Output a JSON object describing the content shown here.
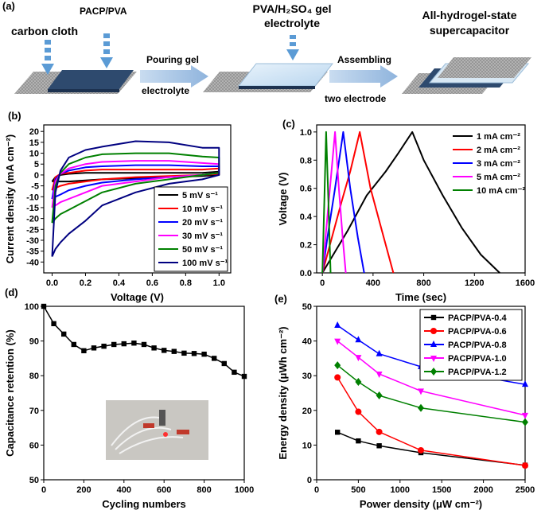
{
  "panel_a": {
    "label": "(a)",
    "carbon_cloth": "carbon cloth",
    "pacp_pva": "PACP/PVA",
    "pouring_gel": "Pouring gel",
    "electrolyte": "electrolyte",
    "gel_electrolyte_1": "PVA/H₂SO₄ gel",
    "gel_electrolyte_2": "electrolyte",
    "assembling": "Assembling",
    "two_electrode": "two electrode",
    "result_1": "All-hydrogel-state",
    "result_2": "supercapacitor"
  },
  "chart_data": [
    {
      "type": "line",
      "panel_label": "(b)",
      "xlabel": "Voltage (V)",
      "ylabel": "Current density (mA cm⁻²)",
      "xlim": [
        -0.05,
        1.07
      ],
      "ylim": [
        -45,
        23
      ],
      "xticks": [
        {
          "value": 0,
          "label": "0.0"
        },
        0.2,
        0.4,
        0.6,
        0.8,
        {
          "value": 1,
          "label": "1.0"
        }
      ],
      "yticks": [
        -40,
        -35,
        -30,
        -25,
        -20,
        -15,
        -10,
        -5,
        0,
        5,
        10,
        15,
        20
      ],
      "legend": "lower right",
      "legend_frame": true,
      "series": [
        {
          "name": "5 mV s⁻¹",
          "color": "#000000",
          "x": [
            0,
            0.02,
            0.05,
            0.1,
            0.2,
            0.3,
            0.5,
            0.7,
            0.9,
            1.0,
            1.0,
            0.9,
            0.7,
            0.5,
            0.3,
            0.2,
            0.1,
            0.05,
            0.02,
            0
          ],
          "values": [
            -3,
            -1,
            0,
            0.5,
            1,
            1,
            1,
            1,
            1,
            1.5,
            0,
            -0.5,
            -1,
            -1.5,
            -2,
            -2.5,
            -3,
            -3,
            -3,
            -3
          ]
        },
        {
          "name": "10 mV s⁻¹",
          "color": "#ff0000",
          "x": [
            0,
            0.02,
            0.05,
            0.1,
            0.2,
            0.3,
            0.5,
            0.7,
            0.9,
            1.0,
            1.0,
            0.9,
            0.7,
            0.5,
            0.3,
            0.2,
            0.1,
            0.05,
            0.02,
            0
          ],
          "values": [
            -7,
            -1,
            0.5,
            1,
            2,
            2.5,
            2.5,
            2.5,
            2.5,
            3,
            0.5,
            0,
            -0.5,
            -1,
            -2,
            -3,
            -4,
            -5,
            -6,
            -7
          ]
        },
        {
          "name": "20 mV s⁻¹",
          "color": "#0000ff",
          "x": [
            0,
            0.02,
            0.05,
            0.1,
            0.2,
            0.3,
            0.5,
            0.7,
            0.9,
            1.0,
            1.0,
            0.9,
            0.7,
            0.5,
            0.3,
            0.2,
            0.1,
            0.05,
            0.02,
            0
          ],
          "values": [
            -11,
            -2,
            0.5,
            2,
            3.5,
            4,
            4.5,
            4.5,
            4,
            4,
            1,
            0,
            -1,
            -2,
            -3.5,
            -5,
            -7,
            -9,
            -10,
            -11
          ]
        },
        {
          "name": "30 mV s⁻¹",
          "color": "#ff00ff",
          "x": [
            0,
            0.02,
            0.05,
            0.1,
            0.2,
            0.3,
            0.5,
            0.7,
            0.9,
            1.0,
            1.0,
            0.9,
            0.7,
            0.5,
            0.3,
            0.2,
            0.1,
            0.05,
            0.02,
            0
          ],
          "values": [
            -15,
            -3,
            0.5,
            3,
            5,
            6,
            6.5,
            6.5,
            5.5,
            5,
            1,
            0,
            -1,
            -3,
            -5,
            -8,
            -11,
            -12.5,
            -14,
            -15
          ]
        },
        {
          "name": "50 mV s⁻¹",
          "color": "#008000",
          "x": [
            0,
            0.02,
            0.05,
            0.1,
            0.2,
            0.3,
            0.5,
            0.7,
            0.9,
            1.0,
            1.0,
            0.9,
            0.7,
            0.5,
            0.3,
            0.2,
            0.1,
            0.05,
            0.02,
            0
          ],
          "values": [
            -22,
            -5,
            1,
            5,
            8,
            9.5,
            10,
            10,
            8.5,
            8,
            1,
            0,
            -2,
            -4,
            -8,
            -12,
            -16,
            -18,
            -20,
            -22
          ]
        },
        {
          "name": "100 mV s⁻¹",
          "color": "#000080",
          "x": [
            0,
            0.02,
            0.05,
            0.1,
            0.2,
            0.3,
            0.5,
            0.7,
            0.9,
            1.0,
            1.0,
            0.9,
            0.7,
            0.5,
            0.3,
            0.2,
            0.1,
            0.05,
            0.02,
            0
          ],
          "values": [
            -37.5,
            -8,
            2,
            8,
            11.5,
            13,
            15.5,
            15,
            12.5,
            12.5,
            0,
            -2,
            -4,
            -8,
            -14,
            -21,
            -27,
            -31,
            -34,
            -37.5
          ]
        }
      ]
    },
    {
      "type": "line",
      "panel_label": "(c)",
      "xlabel": "Time (sec)",
      "ylabel": "Voltage (V)",
      "xlim": [
        -45,
        1600
      ],
      "ylim": [
        0,
        1.05
      ],
      "xticks": [
        0,
        400,
        800,
        1200,
        1600
      ],
      "yticks": [
        {
          "value": 0,
          "label": "0.0"
        },
        0.2,
        0.4,
        0.6,
        0.8,
        {
          "value": 1,
          "label": "1.0"
        }
      ],
      "legend": "upper right",
      "legend_frame": false,
      "series": [
        {
          "name": "1 mA cm⁻²",
          "color": "#000000",
          "x": [
            0,
            100,
            200,
            350,
            500,
            600,
            710,
            800,
            950,
            1100,
            1250,
            1400
          ],
          "values": [
            0,
            0.15,
            0.3,
            0.55,
            0.72,
            0.85,
            1.0,
            0.8,
            0.55,
            0.32,
            0.13,
            0
          ]
        },
        {
          "name": "2 mA cm⁻²",
          "color": "#ff0000",
          "x": [
            0,
            60,
            150,
            220,
            295,
            380,
            470,
            560
          ],
          "values": [
            0,
            0.2,
            0.5,
            0.72,
            1.0,
            0.6,
            0.3,
            0
          ]
        },
        {
          "name": "3 mA cm⁻²",
          "color": "#0000ff",
          "x": [
            0,
            40,
            100,
            165,
            220,
            280,
            330
          ],
          "values": [
            0,
            0.25,
            0.6,
            1.0,
            0.6,
            0.25,
            0
          ]
        },
        {
          "name": "5 mA cm⁻²",
          "color": "#ff00ff",
          "x": [
            0,
            30,
            60,
            100,
            130,
            160,
            185
          ],
          "values": [
            0,
            0.3,
            0.6,
            1.0,
            0.6,
            0.25,
            0
          ]
        },
        {
          "name": "10 mA cm⁻²",
          "color": "#008000",
          "x": [
            0,
            15,
            30,
            48,
            65
          ],
          "values": [
            0,
            0.5,
            1.0,
            0.5,
            0
          ]
        }
      ]
    },
    {
      "type": "line",
      "panel_label": "(d)",
      "xlabel": "Cycling numbers",
      "ylabel": "Capacitance retention (%)",
      "xlim": [
        0,
        1000
      ],
      "ylim": [
        50,
        100
      ],
      "xticks": [
        0,
        200,
        400,
        600,
        800,
        1000
      ],
      "yticks": [
        50,
        60,
        70,
        80,
        90,
        100
      ],
      "x": [
        0,
        50,
        100,
        150,
        200,
        250,
        300,
        350,
        400,
        450,
        500,
        550,
        600,
        650,
        700,
        750,
        800,
        850,
        900,
        950,
        1000
      ],
      "values": [
        100,
        95,
        92,
        89,
        87.2,
        88,
        88.5,
        89,
        89.2,
        89.4,
        89,
        88,
        87.3,
        87,
        86.5,
        86.4,
        86.2,
        85,
        83.5,
        81,
        79.8
      ],
      "color": "#000000",
      "marker": "square"
    },
    {
      "type": "line",
      "panel_label": "(e)",
      "xlabel": "Power density (μW cm⁻²)",
      "ylabel": "Energy density (μWh cm⁻²)",
      "xlim": [
        0,
        2500
      ],
      "ylim": [
        0,
        50
      ],
      "xticks": [
        0,
        500,
        1000,
        1500,
        2000,
        2500
      ],
      "yticks": [
        0,
        10,
        20,
        30,
        40,
        50
      ],
      "legend": "upper right",
      "legend_frame": true,
      "x": [
        250,
        500,
        750,
        1250,
        2500
      ],
      "series": [
        {
          "name": "PACP/PVA-0.4",
          "color": "#000000",
          "marker": "square",
          "values": [
            13.7,
            11.2,
            9.8,
            7.8,
            4.2
          ]
        },
        {
          "name": "PACP/PVA-0.6",
          "color": "#ff0000",
          "marker": "circle",
          "values": [
            29.5,
            19.6,
            13.8,
            8.5,
            4.1
          ]
        },
        {
          "name": "PACP/PVA-0.8",
          "color": "#0000ff",
          "marker": "triangle-up",
          "values": [
            44.5,
            40.3,
            36.3,
            32.6,
            27.5
          ]
        },
        {
          "name": "PACP/PVA-1.0",
          "color": "#ff00ff",
          "marker": "triangle-down",
          "values": [
            40,
            35.3,
            30.5,
            25.6,
            18.6
          ]
        },
        {
          "name": "PACP/PVA-1.2",
          "color": "#008000",
          "marker": "diamond",
          "values": [
            33,
            28.2,
            24.3,
            20.7,
            16.6
          ]
        }
      ]
    }
  ]
}
